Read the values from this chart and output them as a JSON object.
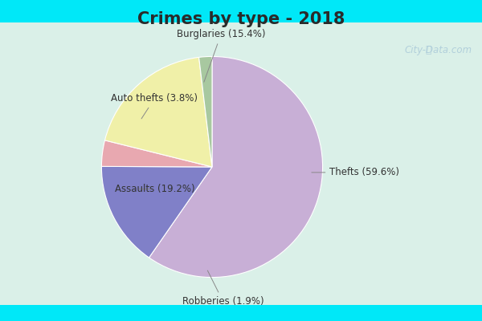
{
  "title": "Crimes by type - 2018",
  "labels": [
    "Thefts",
    "Burglaries",
    "Auto thefts",
    "Assaults",
    "Robberies"
  ],
  "values": [
    59.6,
    15.4,
    3.8,
    19.2,
    1.9
  ],
  "colors": [
    "#c8afd6",
    "#8080c8",
    "#e8a8b0",
    "#f0f0a8",
    "#a8c8a0"
  ],
  "label_texts": [
    "Thefts (59.6%)",
    "Burglaries (15.4%)",
    "Auto thefts (3.8%)",
    "Assaults (19.2%)",
    "Robberies (1.9%)"
  ],
  "background_cyan": "#00e8f8",
  "background_inner": "#daf0e8",
  "title_fontsize": 15,
  "watermark": "City-Data.com",
  "label_fontsize": 8.5
}
